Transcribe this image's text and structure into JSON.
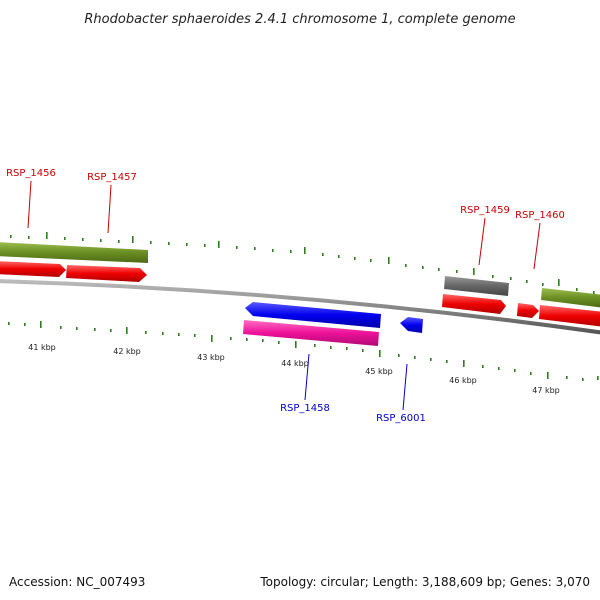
{
  "header": {
    "title": "Rhodobacter sphaeroides 2.4.1 chromosome 1, complete genome"
  },
  "footer": {
    "accession": "Accession: NC_007493",
    "summary": "Topology: circular; Length: 3,188,609 bp; Genes: 3,070"
  },
  "colors": {
    "forward_label": "#cc0000",
    "reverse_label": "#0000cc",
    "tick": "#2e7d1e",
    "cog_green": "#6b8e23",
    "cds_red": "#ee0000",
    "cds_gray": "#666666",
    "cds_blue": "#0000ee",
    "cds_pink": "#ee1199",
    "backbone": "#888888"
  },
  "map": {
    "ticks": [
      "41 kbp",
      "42 kbp",
      "43 kbp",
      "44 kbp",
      "45 kbp",
      "46 kbp",
      "47 kbp"
    ],
    "forward_genes": [
      "RSP_1456",
      "RSP_1457",
      "RSP_1459",
      "RSP_1460"
    ],
    "reverse_genes": [
      "RSP_1458",
      "RSP_6001"
    ]
  }
}
